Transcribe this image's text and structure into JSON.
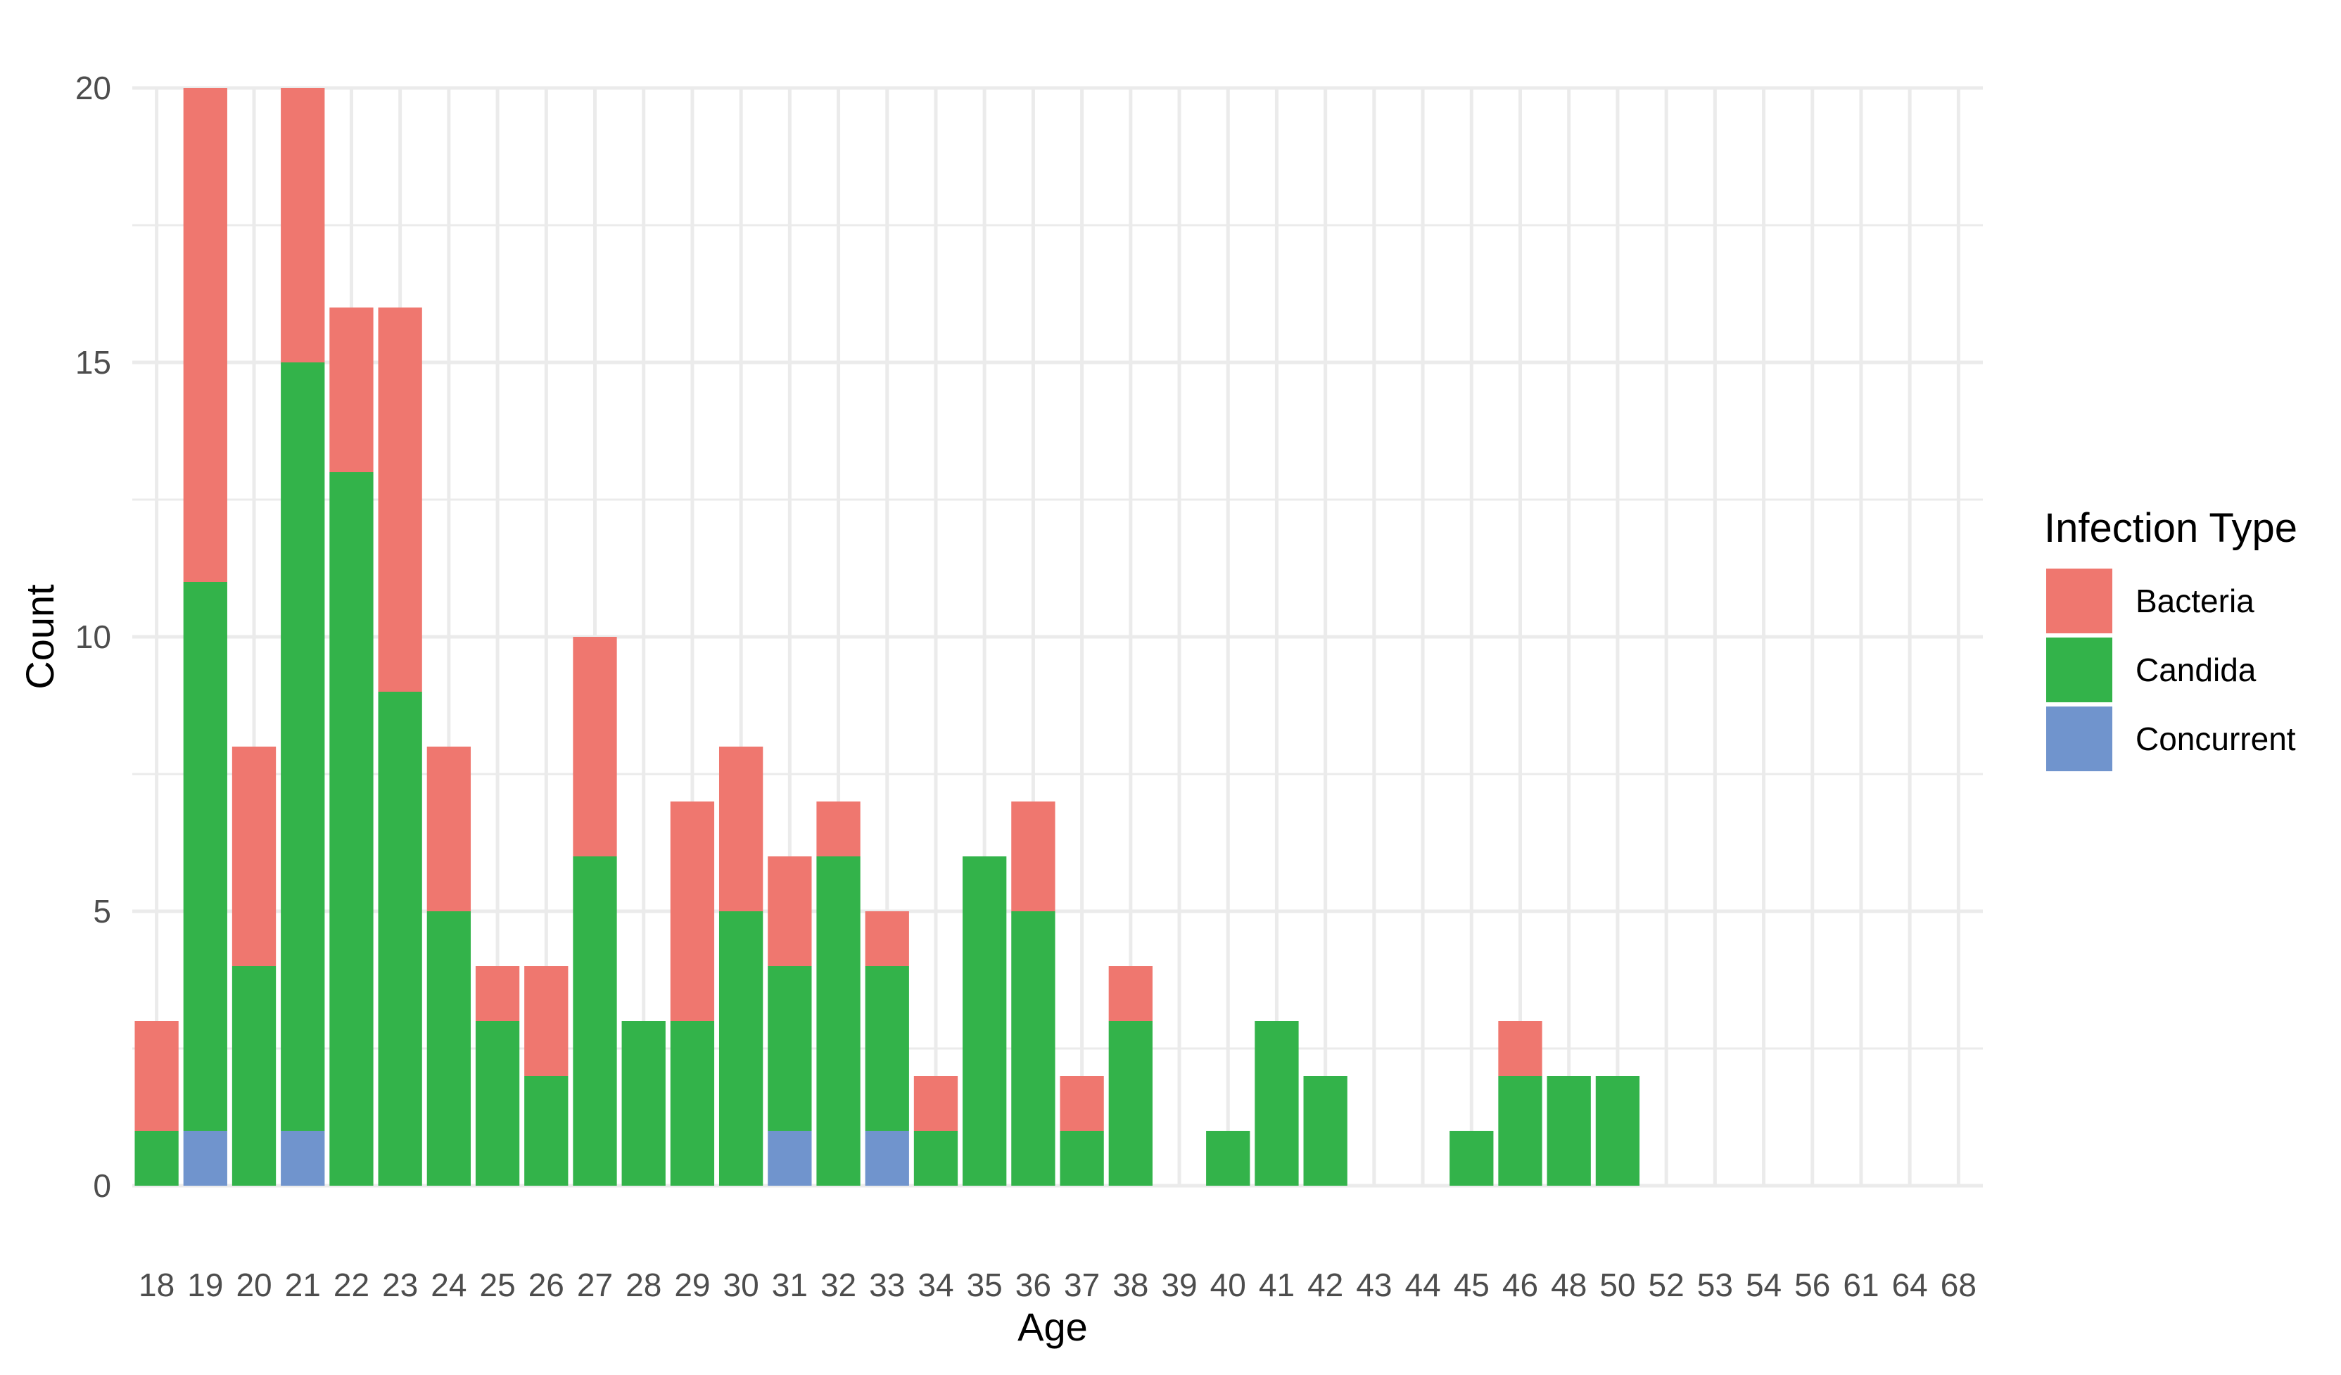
{
  "chart_data": {
    "type": "bar",
    "stacked": true,
    "title": "",
    "xlabel": "Age",
    "ylabel": "Count",
    "ylim": [
      0,
      20
    ],
    "yticks": [
      0,
      5,
      10,
      15,
      20
    ],
    "grid": true,
    "legend": {
      "title": "Infection Type",
      "position": "right"
    },
    "categories": [
      "18",
      "19",
      "20",
      "21",
      "22",
      "23",
      "24",
      "25",
      "26",
      "27",
      "28",
      "29",
      "30",
      "31",
      "32",
      "33",
      "34",
      "35",
      "36",
      "37",
      "38",
      "39",
      "40",
      "41",
      "42",
      "43",
      "44",
      "45",
      "46",
      "48",
      "50",
      "52",
      "53",
      "54",
      "56",
      "61",
      "64",
      "68"
    ],
    "series": [
      {
        "name": "Concurrent",
        "color": "#7094CD",
        "values": [
          0,
          1,
          0,
          1,
          0,
          0,
          0,
          0,
          0,
          0,
          0,
          0,
          0,
          1,
          0,
          1,
          0,
          0,
          0,
          0,
          0,
          0,
          0,
          0,
          0,
          0,
          0,
          0,
          0,
          0,
          0,
          0,
          0,
          0,
          0,
          0,
          0,
          0
        ]
      },
      {
        "name": "Candida",
        "color": "#33B34A",
        "values": [
          1,
          10,
          4,
          14,
          13,
          9,
          5,
          3,
          2,
          6,
          3,
          3,
          5,
          3,
          6,
          3,
          1,
          6,
          5,
          1,
          3,
          0,
          1,
          3,
          2,
          0,
          0,
          1,
          2,
          2,
          2,
          0,
          0,
          0,
          0,
          0,
          0,
          0
        ]
      },
      {
        "name": "Bacteria",
        "color": "#EF776F",
        "values": [
          2,
          9,
          4,
          5,
          3,
          7,
          3,
          1,
          2,
          4,
          0,
          4,
          3,
          2,
          1,
          1,
          1,
          0,
          2,
          1,
          1,
          0,
          0,
          0,
          0,
          0,
          0,
          0,
          1,
          0,
          0,
          0,
          0,
          0,
          0,
          0,
          0,
          0
        ]
      }
    ],
    "legend_order": [
      "Bacteria",
      "Candida",
      "Concurrent"
    ]
  }
}
